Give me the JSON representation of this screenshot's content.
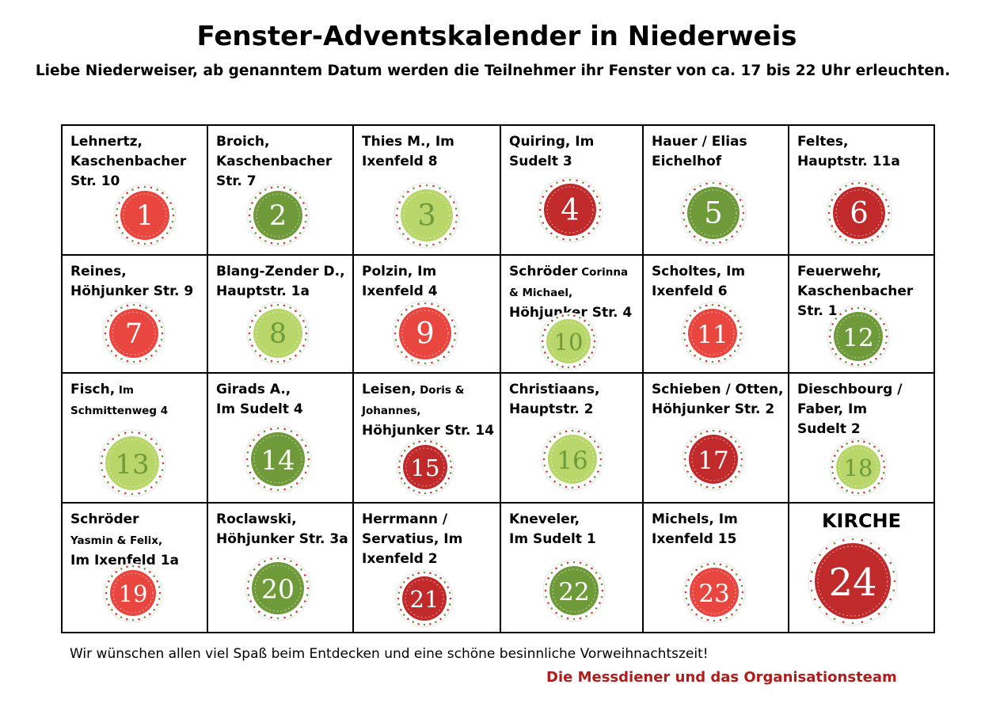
{
  "title": "Fenster-Adventskalender in Niederweis",
  "subtitle": "Liebe Niederweiser, ab genanntem Datum werden die Teilnehmer ihr Fenster von ca. 17 bis 22 Uhr erleuchten.",
  "colors": {
    "red": "#e8463f",
    "dark_red": "#c02a2a",
    "green": "#6f9a3a",
    "light_green": "#b9d66a",
    "footer_red": "#b01c1c"
  },
  "days": [
    {
      "day": "1",
      "name": "Lehnertz,\nKaschenbacher\nStr. 10",
      "color": "red"
    },
    {
      "day": "2",
      "name": "Broich,\nKaschenbacher\nStr. 7",
      "color": "green"
    },
    {
      "day": "3",
      "name": "Thies M., Im\nIxenfeld 8",
      "color": "light_green"
    },
    {
      "day": "4",
      "name": "Quiring, Im\nSudelt 3",
      "color": "dark_red"
    },
    {
      "day": "5",
      "name": "Hauer / Elias\nEichelhof",
      "color": "green"
    },
    {
      "day": "6",
      "name": "Feltes,\nHauptstr. 11a",
      "color": "dark_red"
    },
    {
      "day": "7",
      "name": "Reines,\nHöhjunker Str. 9",
      "color": "red"
    },
    {
      "day": "8",
      "name": "Blang-Zender D.,\nHauptstr. 1a",
      "color": "light_green"
    },
    {
      "day": "9",
      "name": "Polzin, Im\nIxenfeld 4",
      "color": "red"
    },
    {
      "day": "10",
      "name": "Schröder",
      "name_small": " Corinna\n& Michael,",
      "name_rest": "\nHöhjunker Str. 4",
      "color": "light_green"
    },
    {
      "day": "11",
      "name": "Scholtes, Im\nIxenfeld 6",
      "color": "red"
    },
    {
      "day": "12",
      "name": "Feuerwehr,\nKaschenbacher\nStr. 1",
      "color": "green"
    },
    {
      "day": "13",
      "name": "Fisch,",
      "name_small": " Im\nSchmittenweg 4",
      "name_rest": "",
      "color": "light_green"
    },
    {
      "day": "14",
      "name": "Girads A.,\nIm Sudelt 4",
      "color": "green"
    },
    {
      "day": "15",
      "name": "Leisen,",
      "name_small": " Doris &\nJohannes,",
      "name_rest": "\nHöhjunker Str. 14",
      "color": "dark_red"
    },
    {
      "day": "16",
      "name": "Christiaans,\nHauptstr. 2",
      "color": "light_green"
    },
    {
      "day": "17",
      "name": "Schieben / Otten,\nHöhjunker Str. 2",
      "color": "dark_red"
    },
    {
      "day": "18",
      "name": "Dieschbourg /\nFaber, Im\nSudelt 2",
      "color": "light_green"
    },
    {
      "day": "19",
      "name": "Schröder",
      "name_small": "\nYasmin & Felix,",
      "name_rest": "\nIm Ixenfeld 1a",
      "color": "red"
    },
    {
      "day": "20",
      "name": "Roclawski,\nHöhjunker Str. 3a",
      "color": "green"
    },
    {
      "day": "21",
      "name": "Herrmann /\nServatius, Im\nIxenfeld 2",
      "color": "dark_red"
    },
    {
      "day": "22",
      "name": "Kneveler,\nIm Sudelt 1",
      "color": "green"
    },
    {
      "day": "23",
      "name": "Michels, Im\nIxenfeld 15",
      "color": "red"
    },
    {
      "day": "24",
      "name": "KIRCHE",
      "color": "dark_red",
      "special": true
    }
  ],
  "footer": {
    "wish": "Wir wünschen allen viel Spaß beim Entdecken und eine schöne besinnliche Vorweihnachtszeit!",
    "signature": "Die Messdiener und das Organisationsteam"
  }
}
